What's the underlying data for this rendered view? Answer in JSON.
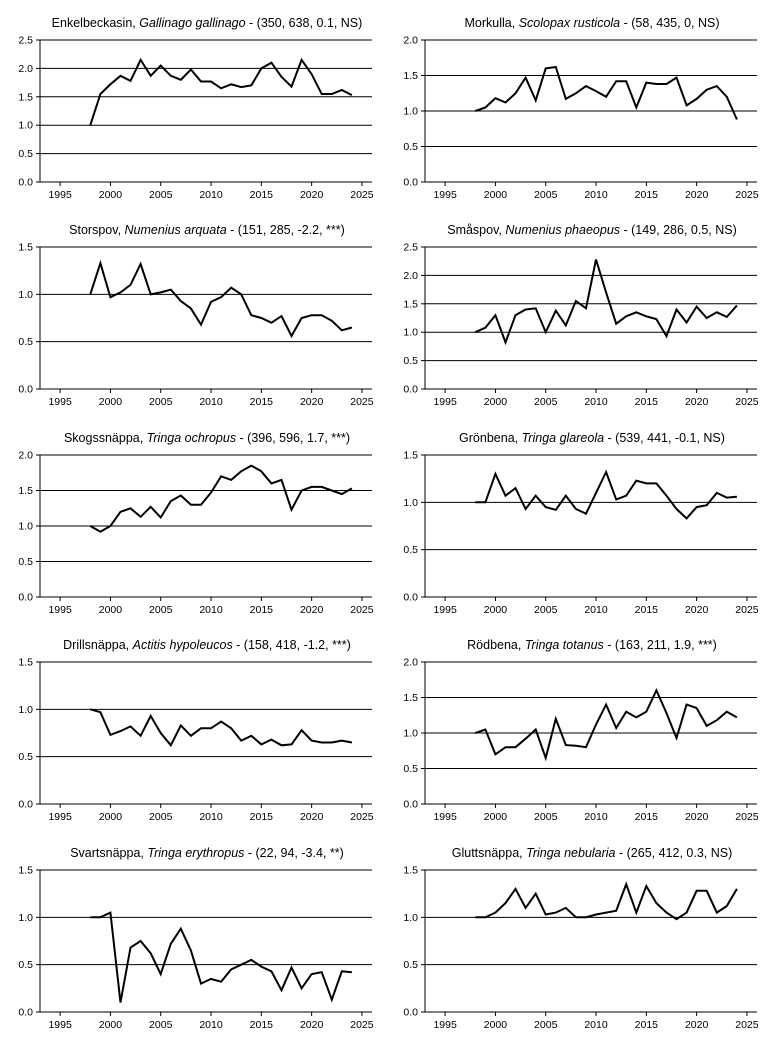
{
  "style": {
    "line_color": "#000000",
    "grid_color": "#000000",
    "background": "#ffffff"
  },
  "chart_data": [
    {
      "type": "line",
      "title_plain": "Enkelbeckasin, ",
      "title_italic": "Gallinago gallinago",
      "title_stats": " - (350, 638, 0.1, NS)",
      "x": [
        1998,
        1999,
        2000,
        2001,
        2002,
        2003,
        2004,
        2005,
        2006,
        2007,
        2008,
        2009,
        2010,
        2011,
        2012,
        2013,
        2014,
        2015,
        2016,
        2017,
        2018,
        2019,
        2020,
        2021,
        2022,
        2023,
        2024
      ],
      "values": [
        1.0,
        1.55,
        1.72,
        1.87,
        1.78,
        2.15,
        1.87,
        2.05,
        1.87,
        1.8,
        1.98,
        1.77,
        1.77,
        1.65,
        1.72,
        1.67,
        1.7,
        2.0,
        2.1,
        1.85,
        1.68,
        2.15,
        1.9,
        1.55,
        1.55,
        1.62,
        1.53
      ],
      "xlim": [
        1993,
        2026
      ],
      "ylim": [
        0,
        2.5
      ],
      "xticks": [
        "1995",
        "2000",
        "2005",
        "2010",
        "2015",
        "2020",
        "2025"
      ],
      "yticks": [
        "0.0",
        "0.5",
        "1.0",
        "1.5",
        "2.0",
        "2.5"
      ],
      "gridlines": [
        0.5,
        1.0,
        1.5,
        2.0,
        2.5
      ]
    },
    {
      "type": "line",
      "title_plain": "Morkulla, ",
      "title_italic": "Scolopax rusticola",
      "title_stats": " - (58, 435, 0, NS)",
      "x": [
        1998,
        1999,
        2000,
        2001,
        2002,
        2003,
        2004,
        2005,
        2006,
        2007,
        2008,
        2009,
        2010,
        2011,
        2012,
        2013,
        2014,
        2015,
        2016,
        2017,
        2018,
        2019,
        2020,
        2021,
        2022,
        2023,
        2024
      ],
      "values": [
        1.0,
        1.05,
        1.18,
        1.12,
        1.25,
        1.47,
        1.15,
        1.6,
        1.62,
        1.17,
        1.25,
        1.35,
        1.28,
        1.2,
        1.42,
        1.42,
        1.05,
        1.4,
        1.38,
        1.38,
        1.47,
        1.08,
        1.17,
        1.3,
        1.35,
        1.2,
        0.88
      ],
      "xlim": [
        1993,
        2026
      ],
      "ylim": [
        0,
        2.0
      ],
      "xticks": [
        "1995",
        "2000",
        "2005",
        "2010",
        "2015",
        "2020",
        "2025"
      ],
      "yticks": [
        "0.0",
        "0.5",
        "1.0",
        "1.5",
        "2.0"
      ],
      "gridlines": [
        0.5,
        1.0,
        1.5,
        2.0
      ]
    },
    {
      "type": "line",
      "title_plain": "Storspov, ",
      "title_italic": "Numenius arquata",
      "title_stats": " - (151, 285, -2.2, ***)",
      "x": [
        1998,
        1999,
        2000,
        2001,
        2002,
        2003,
        2004,
        2005,
        2006,
        2007,
        2008,
        2009,
        2010,
        2011,
        2012,
        2013,
        2014,
        2015,
        2016,
        2017,
        2018,
        2019,
        2020,
        2021,
        2022,
        2023,
        2024
      ],
      "values": [
        1.0,
        1.33,
        0.97,
        1.02,
        1.1,
        1.32,
        1.0,
        1.02,
        1.05,
        0.93,
        0.85,
        0.68,
        0.92,
        0.97,
        1.07,
        1.0,
        0.78,
        0.75,
        0.7,
        0.77,
        0.56,
        0.75,
        0.78,
        0.78,
        0.72,
        0.62,
        0.65
      ],
      "xlim": [
        1993,
        2026
      ],
      "ylim": [
        0,
        1.5
      ],
      "xticks": [
        "1995",
        "2000",
        "2005",
        "2010",
        "2015",
        "2020",
        "2025"
      ],
      "yticks": [
        "0.0",
        "0.5",
        "1.0",
        "1.5"
      ],
      "gridlines": [
        0.5,
        1.0,
        1.5
      ]
    },
    {
      "type": "line",
      "title_plain": "Småspov, ",
      "title_italic": "Numenius phaeopus",
      "title_stats": " - (149, 286, 0.5, NS)",
      "x": [
        1998,
        1999,
        2000,
        2001,
        2002,
        2003,
        2004,
        2005,
        2006,
        2007,
        2008,
        2009,
        2010,
        2011,
        2012,
        2013,
        2014,
        2015,
        2016,
        2017,
        2018,
        2019,
        2020,
        2021,
        2022,
        2023,
        2024
      ],
      "values": [
        1.0,
        1.08,
        1.3,
        0.82,
        1.3,
        1.4,
        1.42,
        1.0,
        1.38,
        1.12,
        1.55,
        1.42,
        2.28,
        1.7,
        1.15,
        1.28,
        1.35,
        1.28,
        1.23,
        0.93,
        1.4,
        1.17,
        1.45,
        1.25,
        1.35,
        1.27,
        1.47
      ],
      "xlim": [
        1993,
        2026
      ],
      "ylim": [
        0,
        2.5
      ],
      "xticks": [
        "1995",
        "2000",
        "2005",
        "2010",
        "2015",
        "2020",
        "2025"
      ],
      "yticks": [
        "0.0",
        "0.5",
        "1.0",
        "1.5",
        "2.0",
        "2.5"
      ],
      "gridlines": [
        0.5,
        1.0,
        1.5,
        2.0,
        2.5
      ]
    },
    {
      "type": "line",
      "title_plain": "Skogssnäppa, ",
      "title_italic": "Tringa ochropus",
      "title_stats": " - (396, 596, 1.7, ***)",
      "x": [
        1998,
        1999,
        2000,
        2001,
        2002,
        2003,
        2004,
        2005,
        2006,
        2007,
        2008,
        2009,
        2010,
        2011,
        2012,
        2013,
        2014,
        2015,
        2016,
        2017,
        2018,
        2019,
        2020,
        2021,
        2022,
        2023,
        2024
      ],
      "values": [
        1.0,
        0.92,
        1.0,
        1.2,
        1.25,
        1.13,
        1.27,
        1.12,
        1.35,
        1.43,
        1.3,
        1.3,
        1.47,
        1.7,
        1.65,
        1.77,
        1.85,
        1.77,
        1.6,
        1.65,
        1.23,
        1.5,
        1.55,
        1.55,
        1.5,
        1.45,
        1.53
      ],
      "xlim": [
        1993,
        2026
      ],
      "ylim": [
        0,
        2.0
      ],
      "xticks": [
        "1995",
        "2000",
        "2005",
        "2010",
        "2015",
        "2020",
        "2025"
      ],
      "yticks": [
        "0.0",
        "0.5",
        "1.0",
        "1.5",
        "2.0"
      ],
      "gridlines": [
        0.5,
        1.0,
        1.5,
        2.0
      ]
    },
    {
      "type": "line",
      "title_plain": "Grönbena, ",
      "title_italic": "Tringa glareola",
      "title_stats": " - (539, 441, -0.1, NS)",
      "x": [
        1998,
        1999,
        2000,
        2001,
        2002,
        2003,
        2004,
        2005,
        2006,
        2007,
        2008,
        2009,
        2010,
        2011,
        2012,
        2013,
        2014,
        2015,
        2016,
        2017,
        2018,
        2019,
        2020,
        2021,
        2022,
        2023,
        2024
      ],
      "values": [
        1.0,
        1.0,
        1.3,
        1.07,
        1.15,
        0.93,
        1.07,
        0.95,
        0.92,
        1.07,
        0.93,
        0.88,
        1.1,
        1.32,
        1.03,
        1.07,
        1.23,
        1.2,
        1.2,
        1.07,
        0.93,
        0.83,
        0.95,
        0.97,
        1.1,
        1.05,
        1.06
      ],
      "xlim": [
        1993,
        2026
      ],
      "ylim": [
        0,
        1.5
      ],
      "xticks": [
        "1995",
        "2000",
        "2005",
        "2010",
        "2015",
        "2020",
        "2025"
      ],
      "yticks": [
        "0.0",
        "0.5",
        "1.0",
        "1.5"
      ],
      "gridlines": [
        0.5,
        1.0,
        1.5
      ]
    },
    {
      "type": "line",
      "title_plain": "Drillsnäppa, ",
      "title_italic": "Actitis hypoleucos",
      "title_stats": " - (158, 418, -1.2, ***)",
      "x": [
        1998,
        1999,
        2000,
        2001,
        2002,
        2003,
        2004,
        2005,
        2006,
        2007,
        2008,
        2009,
        2010,
        2011,
        2012,
        2013,
        2014,
        2015,
        2016,
        2017,
        2018,
        2019,
        2020,
        2021,
        2022,
        2023,
        2024
      ],
      "values": [
        1.0,
        0.97,
        0.73,
        0.77,
        0.82,
        0.72,
        0.93,
        0.75,
        0.62,
        0.83,
        0.72,
        0.8,
        0.8,
        0.87,
        0.8,
        0.67,
        0.72,
        0.63,
        0.68,
        0.62,
        0.63,
        0.78,
        0.67,
        0.65,
        0.65,
        0.67,
        0.65
      ],
      "xlim": [
        1993,
        2026
      ],
      "ylim": [
        0,
        1.5
      ],
      "xticks": [
        "1995",
        "2000",
        "2005",
        "2010",
        "2015",
        "2020",
        "2025"
      ],
      "yticks": [
        "0.0",
        "0.5",
        "1.0",
        "1.5"
      ],
      "gridlines": [
        0.5,
        1.0,
        1.5
      ]
    },
    {
      "type": "line",
      "title_plain": "Rödbena, ",
      "title_italic": "Tringa totanus",
      "title_stats": " - (163, 211, 1.9, ***)",
      "x": [
        1998,
        1999,
        2000,
        2001,
        2002,
        2003,
        2004,
        2005,
        2006,
        2007,
        2008,
        2009,
        2010,
        2011,
        2012,
        2013,
        2014,
        2015,
        2016,
        2017,
        2018,
        2019,
        2020,
        2021,
        2022,
        2023,
        2024
      ],
      "values": [
        1.0,
        1.05,
        0.7,
        0.8,
        0.8,
        0.92,
        1.05,
        0.65,
        1.2,
        0.83,
        0.82,
        0.8,
        1.12,
        1.4,
        1.07,
        1.3,
        1.22,
        1.3,
        1.6,
        1.28,
        0.93,
        1.4,
        1.35,
        1.1,
        1.18,
        1.3,
        1.22
      ],
      "xlim": [
        1993,
        2026
      ],
      "ylim": [
        0,
        2.0
      ],
      "xticks": [
        "1995",
        "2000",
        "2005",
        "2010",
        "2015",
        "2020",
        "2025"
      ],
      "yticks": [
        "0.0",
        "0.5",
        "1.0",
        "1.5",
        "2.0"
      ],
      "gridlines": [
        0.5,
        1.0,
        1.5,
        2.0
      ]
    },
    {
      "type": "line",
      "title_plain": "Svartsnäppa, ",
      "title_italic": "Tringa erythropus",
      "title_stats": " - (22, 94, -3.4, **)",
      "x": [
        1998,
        1999,
        2000,
        2001,
        2002,
        2003,
        2004,
        2005,
        2006,
        2007,
        2008,
        2009,
        2010,
        2011,
        2012,
        2013,
        2014,
        2015,
        2016,
        2017,
        2018,
        2019,
        2020,
        2021,
        2022,
        2023,
        2024
      ],
      "values": [
        1.0,
        1.0,
        1.05,
        0.1,
        0.68,
        0.75,
        0.62,
        0.4,
        0.72,
        0.88,
        0.65,
        0.3,
        0.35,
        0.32,
        0.45,
        0.5,
        0.55,
        0.48,
        0.43,
        0.23,
        0.47,
        0.25,
        0.4,
        0.42,
        0.13,
        0.43,
        0.42
      ],
      "xlim": [
        1993,
        2026
      ],
      "ylim": [
        0,
        1.5
      ],
      "xticks": [
        "1995",
        "2000",
        "2005",
        "2010",
        "2015",
        "2020",
        "2025"
      ],
      "yticks": [
        "0.0",
        "0.5",
        "1.0",
        "1.5"
      ],
      "gridlines": [
        0.5,
        1.0,
        1.5
      ]
    },
    {
      "type": "line",
      "title_plain": "Gluttsnäppa, ",
      "title_italic": "Tringa nebularia",
      "title_stats": " - (265, 412, 0.3, NS)",
      "x": [
        1998,
        1999,
        2000,
        2001,
        2002,
        2003,
        2004,
        2005,
        2006,
        2007,
        2008,
        2009,
        2010,
        2011,
        2012,
        2013,
        2014,
        2015,
        2016,
        2017,
        2018,
        2019,
        2020,
        2021,
        2022,
        2023,
        2024
      ],
      "values": [
        1.0,
        1.0,
        1.05,
        1.15,
        1.3,
        1.1,
        1.25,
        1.03,
        1.05,
        1.1,
        1.0,
        1.0,
        1.03,
        1.05,
        1.07,
        1.35,
        1.05,
        1.33,
        1.15,
        1.05,
        0.98,
        1.05,
        1.28,
        1.28,
        1.05,
        1.12,
        1.3
      ],
      "xlim": [
        1993,
        2026
      ],
      "ylim": [
        0,
        1.5
      ],
      "xticks": [
        "1995",
        "2000",
        "2005",
        "2010",
        "2015",
        "2020",
        "2025"
      ],
      "yticks": [
        "0.0",
        "0.5",
        "1.0",
        "1.5"
      ],
      "gridlines": [
        0.5,
        1.0,
        1.5
      ]
    }
  ]
}
